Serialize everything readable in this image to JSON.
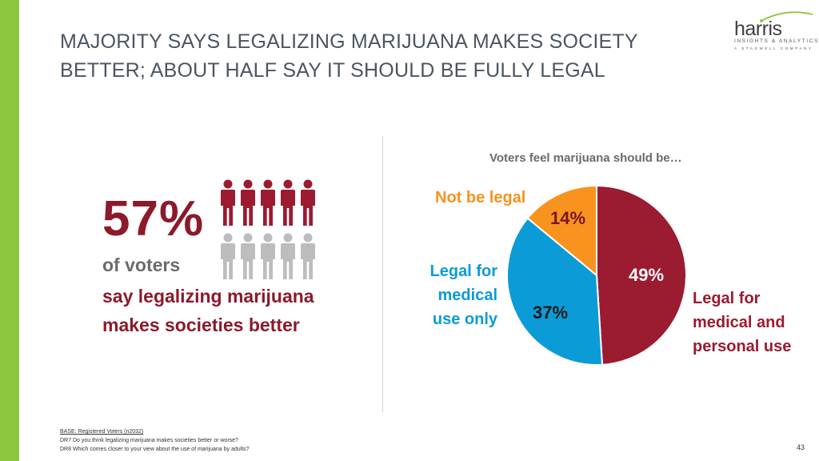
{
  "title": {
    "line1": "MAJORITY SAYS LEGALIZING MARIJUANA MAKES SOCIETY",
    "line2": "BETTER; ABOUT HALF SAY IT SHOULD BE FULLY LEGAL"
  },
  "logo": {
    "wordmark": "harris",
    "line1": "INSIGHTS & ANALYTICS",
    "line2": "A STAGWELL COMPANY"
  },
  "stat": {
    "value": "57%",
    "fraction": 0.57,
    "line1": "of voters",
    "line2": "say legalizing marijuana",
    "line3": "makes societies better"
  },
  "colors": {
    "accent_green": "#8dc63f",
    "maroon": "#9b1b30",
    "blue": "#0b9bd7",
    "orange": "#f7931e",
    "gray_person": "#bdbdbd"
  },
  "chart_data": {
    "type": "pie",
    "title": "Voters feel marijuana should be…",
    "slices": [
      {
        "label": "Legal for medical and personal use",
        "value": 49,
        "display": "49%",
        "color": "#9b1b30",
        "label_lines": [
          "Legal for",
          "medical and",
          "personal use"
        ]
      },
      {
        "label": "Legal for medical use only",
        "value": 37,
        "display": "37%",
        "color": "#0b9bd7",
        "label_lines": [
          "Legal for",
          "medical",
          "use only"
        ]
      },
      {
        "label": "Not be legal",
        "value": 14,
        "display": "14%",
        "color": "#f7931e",
        "label_lines": [
          "Not be legal"
        ]
      }
    ]
  },
  "footer": {
    "base": "BASE: Registered Voters (n2032)",
    "q1": "DR7 Do you think legalizing marijuana makes societies better or worse?",
    "q2": "DR8 Which comes closer to your view about the use of marijuana by adults?",
    "page": "43"
  }
}
